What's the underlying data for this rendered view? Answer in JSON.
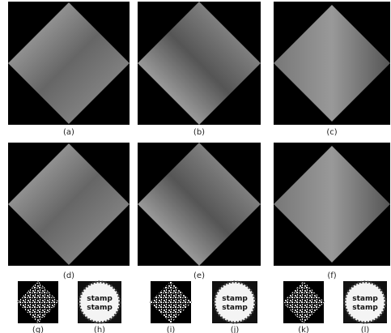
{
  "figure": {
    "panels": [
      {
        "label": "(a)"
      },
      {
        "label": "(b)"
      },
      {
        "label": "(c)"
      },
      {
        "label": "(d)"
      },
      {
        "label": "(e)"
      },
      {
        "label": "(f)"
      },
      {
        "label": "(g)"
      },
      {
        "label": "(h)"
      },
      {
        "label": "(i)"
      },
      {
        "label": "(j)"
      },
      {
        "label": "(k)"
      },
      {
        "label": "(l)"
      }
    ],
    "watermark_text": "stamp"
  }
}
